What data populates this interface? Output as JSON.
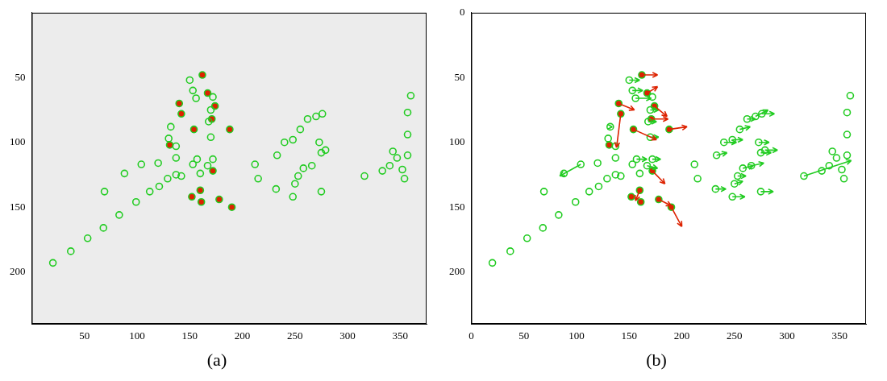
{
  "chart_data": [
    {
      "type": "scatter",
      "title": "(a)",
      "xlim": [
        0,
        375
      ],
      "ylim": [
        0,
        240
      ],
      "xticks": [
        50,
        100,
        150,
        200,
        250,
        300,
        350
      ],
      "yticks": [
        50,
        100,
        150,
        200
      ],
      "grid": false,
      "series": [
        {
          "color": "#22cc22",
          "marker": "open_circle",
          "x": [
            20,
            37,
            53,
            68,
            83,
            99,
            112,
            121,
            129,
            137,
            69,
            88,
            104,
            120,
            150,
            153,
            156,
            172,
            170,
            168,
            132,
            130,
            137,
            170,
            137,
            157,
            172,
            153,
            167,
            160,
            142,
            212,
            215,
            232,
            233,
            240,
            248,
            250,
            248,
            255,
            262,
            258,
            253,
            266,
            270,
            276,
            273,
            275,
            279,
            275,
            316,
            333,
            340,
            343,
            347,
            352,
            357,
            354,
            357,
            357,
            360
          ],
          "y": [
            193,
            184,
            174,
            166,
            156,
            146,
            138,
            134,
            128,
            125,
            138,
            124,
            117,
            116,
            52,
            60,
            66,
            65,
            75,
            84,
            88,
            97,
            103,
            96,
            112,
            113,
            113,
            117,
            118,
            124,
            126,
            117,
            128,
            136,
            110,
            100,
            98,
            132,
            142,
            90,
            82,
            120,
            126,
            118,
            80,
            78,
            100,
            108,
            106,
            138,
            126,
            122,
            118,
            107,
            112,
            121,
            110,
            128,
            94,
            77,
            64
          ]
        },
        {
          "color": "#dd2200",
          "marker": "filled_circle",
          "x": [
            162,
            167,
            140,
            142,
            174,
            171,
            188,
            154,
            131,
            172,
            160,
            152,
            161,
            178,
            190
          ],
          "y": [
            48,
            62,
            70,
            78,
            72,
            82,
            90,
            90,
            102,
            122,
            137,
            142,
            146,
            144,
            150
          ]
        }
      ]
    },
    {
      "type": "scatter",
      "title": "(b)",
      "xlim": [
        0,
        375
      ],
      "ylim": [
        0,
        240
      ],
      "xticks": [
        0,
        50,
        100,
        150,
        200,
        250,
        300,
        350
      ],
      "yticks": [
        0,
        50,
        100,
        150,
        200
      ],
      "grid": false,
      "series": [
        {
          "color": "#22cc22",
          "marker": "open_circle",
          "x": [
            20,
            37,
            53,
            68,
            83,
            99,
            112,
            121,
            129,
            137,
            69,
            88,
            104,
            120,
            150,
            153,
            156,
            172,
            170,
            168,
            132,
            130,
            137,
            170,
            137,
            157,
            172,
            153,
            167,
            160,
            142,
            212,
            215,
            232,
            233,
            240,
            248,
            250,
            248,
            255,
            262,
            258,
            253,
            266,
            270,
            276,
            273,
            275,
            279,
            275,
            316,
            333,
            340,
            343,
            347,
            352,
            357,
            354,
            357,
            357,
            360
          ],
          "y": [
            193,
            184,
            174,
            166,
            156,
            146,
            138,
            134,
            128,
            125,
            138,
            124,
            117,
            116,
            52,
            60,
            66,
            65,
            75,
            84,
            88,
            97,
            103,
            96,
            112,
            113,
            113,
            117,
            118,
            124,
            126,
            117,
            128,
            136,
            110,
            100,
            98,
            132,
            142,
            90,
            82,
            120,
            126,
            118,
            80,
            78,
            100,
            108,
            106,
            138,
            126,
            122,
            118,
            107,
            112,
            121,
            110,
            128,
            94,
            77,
            64
          ],
          "dx": [
            0,
            0,
            0,
            0,
            0,
            0,
            0,
            0,
            0,
            0,
            0,
            0,
            -20,
            0,
            10,
            10,
            15,
            0,
            8,
            8,
            2,
            0,
            0,
            8,
            0,
            10,
            8,
            0,
            10,
            0,
            0,
            0,
            0,
            10,
            10,
            12,
            10,
            8,
            12,
            10,
            8,
            10,
            8,
            12,
            12,
            12,
            10,
            10,
            12,
            12,
            45,
            0,
            0,
            0,
            0,
            0,
            0,
            0,
            0,
            0,
            0
          ],
          "dy": [
            0,
            0,
            0,
            0,
            0,
            0,
            0,
            0,
            0,
            0,
            0,
            0,
            9,
            0,
            0,
            0,
            0,
            0,
            0,
            0,
            0,
            0,
            0,
            0,
            0,
            0,
            0,
            0,
            2,
            0,
            0,
            0,
            0,
            0,
            -2,
            0,
            0,
            -2,
            0,
            -2,
            0,
            -2,
            0,
            -2,
            -5,
            0,
            0,
            0,
            0,
            0,
            -12,
            0,
            0,
            0,
            0,
            0,
            0,
            0,
            0,
            0,
            0
          ]
        },
        {
          "color": "#dd2200",
          "marker": "filled_circle",
          "x": [
            162,
            167,
            140,
            142,
            174,
            171,
            188,
            154,
            131,
            172,
            160,
            152,
            161,
            178,
            190
          ],
          "y": [
            48,
            62,
            70,
            78,
            72,
            82,
            90,
            90,
            102,
            122,
            137,
            142,
            146,
            144,
            150
          ],
          "dx": [
            15,
            10,
            15,
            -4,
            12,
            16,
            17,
            22,
            0,
            12,
            -4,
            0,
            0,
            12,
            10
          ],
          "dy": [
            0,
            -5,
            5,
            26,
            8,
            0,
            -2,
            8,
            0,
            10,
            8,
            0,
            0,
            5,
            15
          ]
        }
      ]
    }
  ]
}
